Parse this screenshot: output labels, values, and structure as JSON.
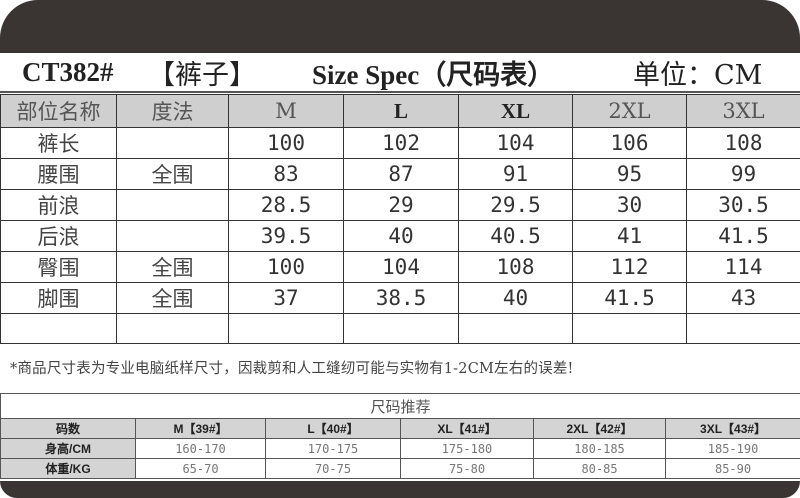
{
  "title": {
    "code": "CT382#",
    "category": "【裤子】",
    "spec": "Size Spec（尺码表）",
    "unit": "单位：CM"
  },
  "spec_table": {
    "headers": [
      "部位名称",
      "度法",
      "M",
      "L",
      "XL",
      "2XL",
      "3XL"
    ],
    "rows": [
      [
        "裤长",
        "",
        "100",
        "102",
        "104",
        "106",
        "108"
      ],
      [
        "腰围",
        "全围",
        "83",
        "87",
        "91",
        "95",
        "99"
      ],
      [
        "前浪",
        "",
        "28.5",
        "29",
        "29.5",
        "30",
        "30.5"
      ],
      [
        "后浪",
        "",
        "39.5",
        "40",
        "40.5",
        "41",
        "41.5"
      ],
      [
        "臀围",
        "全围",
        "100",
        "104",
        "108",
        "112",
        "114"
      ],
      [
        "脚围",
        "全围",
        "37",
        "38.5",
        "40",
        "41.5",
        "43"
      ],
      [
        "",
        "",
        "",
        "",
        "",
        "",
        ""
      ]
    ]
  },
  "note": "*商品尺寸表为专业电脑纸样尺寸，因裁剪和人工缝纫可能与实物有1-2CM左右的误差!",
  "recommend": {
    "caption": "尺码推荐",
    "headers": [
      "码数",
      "M【39#】",
      "L【40#】",
      "XL【41#】",
      "2XL【42#】",
      "3XL【43#】"
    ],
    "rows": [
      [
        "身高/CM",
        "160-170",
        "170-175",
        "175-180",
        "180-185",
        "185-190"
      ],
      [
        "体重/KG",
        "65-70",
        "70-75",
        "75-80",
        "80-85",
        "85-90"
      ]
    ]
  },
  "colors": {
    "band": "#3a3533",
    "header_bg": "#cfcfcf"
  }
}
